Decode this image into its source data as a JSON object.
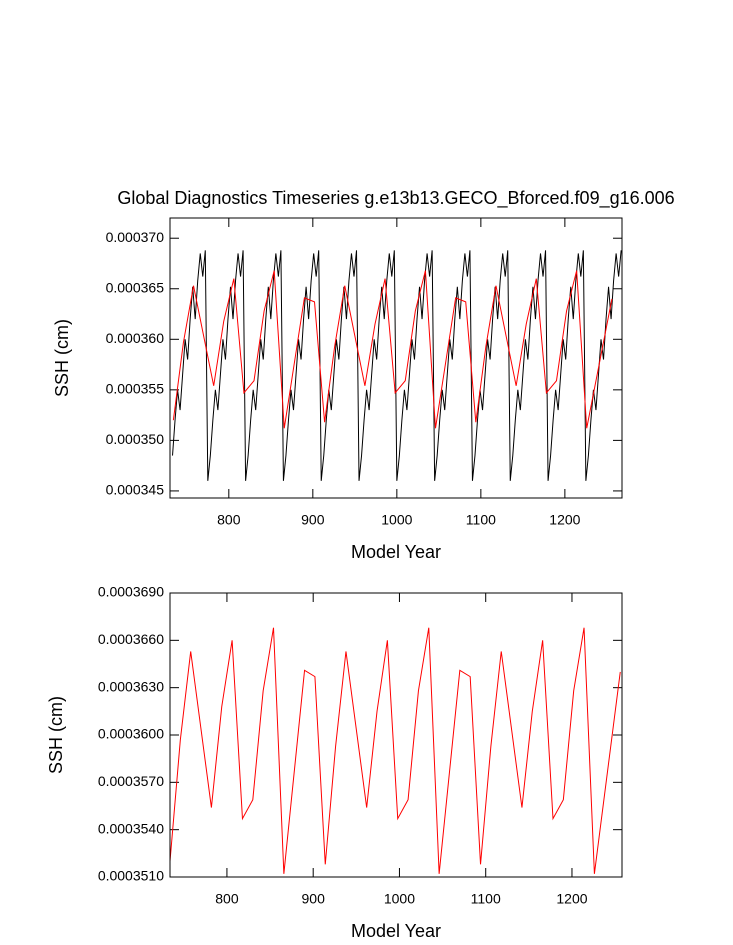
{
  "chart_data": [
    {
      "type": "line",
      "title": "Global Diagnostics Timeseries g.e13b13.GECO_Bforced.f09_g16.006",
      "x_label": "Model Year",
      "y_label": "SSH (cm)",
      "xlim": [
        730,
        1268
      ],
      "ylim": [
        0.0003443,
        0.000372
      ],
      "xticks": [
        800,
        900,
        1000,
        1100,
        1200
      ],
      "yticks": [
        {
          "value": 0.000345,
          "label": "0.000345"
        },
        {
          "value": 0.00035,
          "label": "0.000350"
        },
        {
          "value": 0.000355,
          "label": "0.000355"
        },
        {
          "value": 0.00036,
          "label": "0.000360"
        },
        {
          "value": 0.000365,
          "label": "0.000365"
        },
        {
          "value": 0.00037,
          "label": "0.000370"
        }
      ],
      "series": [
        {
          "color": "#000000",
          "x": [
            733,
            736,
            739,
            742,
            745,
            748,
            751,
            754,
            757,
            760,
            763,
            766,
            769,
            772,
            775,
            778,
            781,
            784,
            787,
            790,
            793,
            796,
            799,
            802,
            805,
            808,
            811,
            814,
            817,
            820,
            823,
            826,
            829,
            832,
            835,
            838,
            841,
            844,
            847,
            850,
            853,
            856,
            859,
            862,
            865,
            868,
            871,
            874,
            877,
            880,
            883,
            886,
            889,
            892,
            895,
            898,
            901,
            904,
            907,
            910,
            913,
            916,
            919,
            922,
            925,
            928,
            931,
            934,
            937,
            940,
            943,
            946,
            949,
            952,
            955,
            958,
            961,
            964,
            967,
            970,
            973,
            976,
            979,
            982,
            985,
            988,
            991,
            994,
            997,
            1000,
            1003,
            1006,
            1009,
            1012,
            1015,
            1018,
            1021,
            1024,
            1027,
            1030,
            1033,
            1036,
            1039,
            1042,
            1045,
            1048,
            1051,
            1054,
            1057,
            1060,
            1063,
            1066,
            1069,
            1072,
            1075,
            1078,
            1081,
            1084,
            1087,
            1090,
            1093,
            1096,
            1099,
            1102,
            1105,
            1108,
            1111,
            1114,
            1117,
            1120,
            1123,
            1126,
            1129,
            1132,
            1135,
            1138,
            1141,
            1144,
            1147,
            1150,
            1153,
            1156,
            1159,
            1162,
            1165,
            1168,
            1171,
            1174,
            1177,
            1180,
            1183,
            1186,
            1189,
            1192,
            1195,
            1198,
            1201,
            1204,
            1207,
            1210,
            1213,
            1216,
            1219,
            1222,
            1225,
            1228,
            1231,
            1234,
            1237,
            1240,
            1243,
            1246,
            1249,
            1252,
            1255,
            1258,
            1261,
            1264,
            1267
          ],
          "values": [
            0.0003485,
            0.000352,
            0.000355,
            0.000353,
            0.0003565,
            0.00036,
            0.000358,
            0.000362,
            0.0003652,
            0.000362,
            0.0003658,
            0.0003685,
            0.0003662,
            0.0003688,
            0.000346,
            0.0003485,
            0.000352,
            0.000355,
            0.000353,
            0.0003565,
            0.00036,
            0.000358,
            0.000362,
            0.0003652,
            0.000362,
            0.0003658,
            0.0003685,
            0.0003662,
            0.0003688,
            0.000346,
            0.0003485,
            0.000352,
            0.000355,
            0.000353,
            0.0003565,
            0.00036,
            0.000358,
            0.000362,
            0.0003652,
            0.000362,
            0.0003658,
            0.0003685,
            0.0003662,
            0.0003688,
            0.000346,
            0.0003485,
            0.000352,
            0.000355,
            0.000353,
            0.0003565,
            0.00036,
            0.000358,
            0.000362,
            0.0003652,
            0.000362,
            0.0003658,
            0.0003685,
            0.0003662,
            0.0003688,
            0.000346,
            0.0003485,
            0.000352,
            0.000355,
            0.000353,
            0.0003565,
            0.00036,
            0.000358,
            0.000362,
            0.0003652,
            0.000362,
            0.0003658,
            0.0003685,
            0.0003662,
            0.0003688,
            0.000346,
            0.0003485,
            0.000352,
            0.000355,
            0.000353,
            0.0003565,
            0.00036,
            0.000358,
            0.000362,
            0.0003652,
            0.000362,
            0.0003658,
            0.0003685,
            0.0003662,
            0.0003688,
            0.000346,
            0.0003485,
            0.000352,
            0.000355,
            0.000353,
            0.0003565,
            0.00036,
            0.000358,
            0.000362,
            0.0003652,
            0.000362,
            0.0003658,
            0.0003685,
            0.0003662,
            0.0003688,
            0.000346,
            0.0003485,
            0.000352,
            0.000355,
            0.000353,
            0.0003565,
            0.00036,
            0.000358,
            0.000362,
            0.0003652,
            0.000362,
            0.0003658,
            0.0003685,
            0.0003662,
            0.0003688,
            0.000346,
            0.0003485,
            0.000352,
            0.000355,
            0.000353,
            0.0003565,
            0.00036,
            0.000358,
            0.000362,
            0.0003652,
            0.000362,
            0.0003658,
            0.0003685,
            0.0003662,
            0.0003688,
            0.000346,
            0.0003485,
            0.000352,
            0.000355,
            0.000353,
            0.0003565,
            0.00036,
            0.000358,
            0.000362,
            0.0003652,
            0.000362,
            0.0003658,
            0.0003685,
            0.0003662,
            0.0003688,
            0.000346,
            0.0003485,
            0.000352,
            0.000355,
            0.000353,
            0.0003565,
            0.00036,
            0.000358,
            0.000362,
            0.0003652,
            0.000362,
            0.0003658,
            0.0003685,
            0.0003662,
            0.0003688,
            0.000346,
            0.0003485,
            0.000352,
            0.000355,
            0.000353,
            0.0003565,
            0.00036,
            0.000358,
            0.000362,
            0.0003652,
            0.000362,
            0.0003658,
            0.0003685,
            0.0003662,
            0.0003688
          ]
        },
        {
          "color": "#ff0000",
          "x": [
            734,
            746,
            758,
            782,
            794,
            806,
            818,
            830,
            842,
            854,
            866,
            890,
            902,
            914,
            926,
            938,
            962,
            974,
            986,
            998,
            1010,
            1022,
            1034,
            1046,
            1070,
            1082,
            1094,
            1106,
            1118,
            1142,
            1154,
            1166,
            1178,
            1190,
            1202,
            1214,
            1226,
            1256
          ],
          "values": [
            0.000352,
            0.0003597,
            0.0003653,
            0.0003554,
            0.0003618,
            0.000366,
            0.0003547,
            0.0003559,
            0.0003628,
            0.0003668,
            0.0003512,
            0.0003641,
            0.0003637,
            0.0003518,
            0.0003593,
            0.0003653,
            0.0003554,
            0.0003615,
            0.000366,
            0.0003547,
            0.0003559,
            0.0003628,
            0.0003668,
            0.0003512,
            0.0003641,
            0.0003637,
            0.0003518,
            0.0003593,
            0.0003653,
            0.0003554,
            0.0003615,
            0.000366,
            0.0003547,
            0.0003559,
            0.0003628,
            0.0003668,
            0.0003512,
            0.000364
          ]
        }
      ]
    },
    {
      "type": "line",
      "x_label": "Model Year",
      "y_label": "SSH (cm)",
      "xlim": [
        734,
        1258
      ],
      "ylim": [
        0.000351,
        0.000369
      ],
      "xticks": [
        800,
        900,
        1000,
        1100,
        1200
      ],
      "yticks": [
        {
          "value": 0.000351,
          "label": "0.0003510"
        },
        {
          "value": 0.000354,
          "label": "0.0003540"
        },
        {
          "value": 0.000357,
          "label": "0.0003570"
        },
        {
          "value": 0.00036,
          "label": "0.0003600"
        },
        {
          "value": 0.000363,
          "label": "0.0003630"
        },
        {
          "value": 0.000366,
          "label": "0.0003660"
        },
        {
          "value": 0.000369,
          "label": "0.0003690"
        }
      ],
      "series": [
        {
          "color": "#ff0000",
          "x": [
            734,
            746,
            758,
            782,
            794,
            806,
            818,
            830,
            842,
            854,
            866,
            890,
            902,
            914,
            926,
            938,
            962,
            974,
            986,
            998,
            1010,
            1022,
            1034,
            1046,
            1070,
            1082,
            1094,
            1106,
            1118,
            1142,
            1154,
            1166,
            1178,
            1190,
            1202,
            1214,
            1226,
            1256
          ],
          "values": [
            0.000352,
            0.0003597,
            0.0003653,
            0.0003554,
            0.0003618,
            0.000366,
            0.0003547,
            0.0003559,
            0.0003628,
            0.0003668,
            0.0003512,
            0.0003641,
            0.0003637,
            0.0003518,
            0.0003593,
            0.0003653,
            0.0003554,
            0.0003615,
            0.000366,
            0.0003547,
            0.0003559,
            0.0003628,
            0.0003668,
            0.0003512,
            0.0003641,
            0.0003637,
            0.0003518,
            0.0003593,
            0.0003653,
            0.0003554,
            0.0003615,
            0.000366,
            0.0003547,
            0.0003559,
            0.0003628,
            0.0003668,
            0.0003512,
            0.000364
          ]
        }
      ]
    }
  ]
}
